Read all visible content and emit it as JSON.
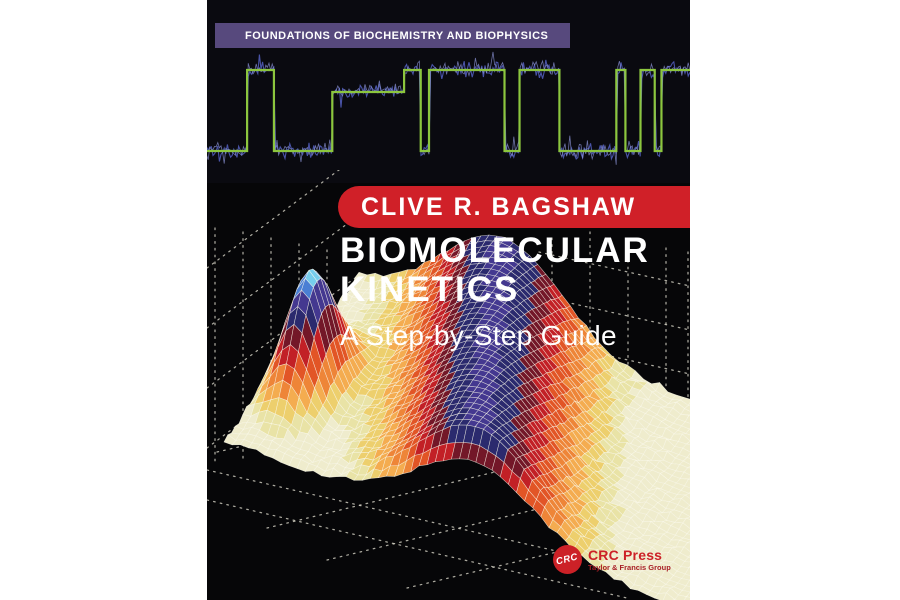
{
  "cover": {
    "series_banner": {
      "label": "FOUNDATIONS OF BIOCHEMISTRY AND BIOPHYSICS",
      "bg": "#57497d",
      "fg": "#ffffff"
    },
    "author_banner": {
      "label": "CLIVE R. BAGSHAW",
      "bg": "#d02028",
      "fg": "#ffffff"
    },
    "title_line1": "BIOMOLECULAR",
    "title_line2": "KINETICS",
    "subtitle": "A Step-by-Step Guide",
    "publisher": {
      "badge": "CRC",
      "name": "CRC Press",
      "group": "Taylor & Francis Group",
      "accent": "#cc2127",
      "group_color": "#a81f26"
    }
  },
  "art": {
    "trace": {
      "seed": 14,
      "ideal_color": "#8cc63e",
      "noise_dark": "#4d57b0",
      "noise_light": "#8b93d6",
      "levels": {
        "high": 22,
        "mid": 44,
        "low": 103
      }
    },
    "surface": {
      "dot_color": "#d6d4c6",
      "wire_color": "#fffdf0",
      "colormap": [
        [
          0.95,
          "#76cdec"
        ],
        [
          0.86,
          "#4a7fd4"
        ],
        [
          0.77,
          "#443890"
        ],
        [
          0.67,
          "#2b2a6e"
        ],
        [
          0.575,
          "#731728"
        ],
        [
          0.475,
          "#c22026"
        ],
        [
          0.375,
          "#e25526"
        ],
        [
          0.285,
          "#ee8538"
        ],
        [
          0.2,
          "#f4ac50"
        ],
        [
          0.13,
          "#edcf6d"
        ],
        [
          0.07,
          "#e9e3a6"
        ],
        [
          -1,
          "#efeccd"
        ]
      ],
      "peak": {
        "u": 0.084,
        "v": 0.45,
        "amp": 119,
        "su": 0.0045,
        "sv": 0.028
      },
      "ridge": {
        "u0": 0.66,
        "drift": 0.3,
        "amp": 95,
        "su": 0.045
      }
    }
  }
}
